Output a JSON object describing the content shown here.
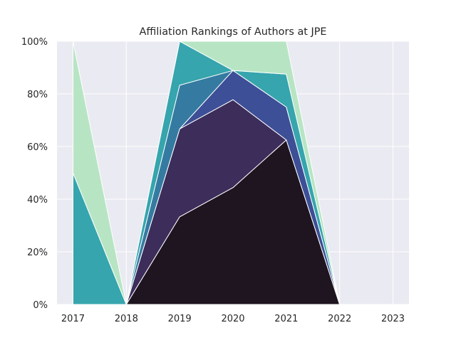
{
  "chart_data": {
    "type": "area",
    "stacked": true,
    "title": "Affiliation Rankings of Authors at JPE",
    "xlabel": "",
    "ylabel": "",
    "x": [
      "2017",
      "2018",
      "2019",
      "2020",
      "2021",
      "2022",
      "2023"
    ],
    "xlim": [
      2016.7,
      2023.3
    ],
    "ylim": [
      0,
      100
    ],
    "y_ticks": [
      0,
      20,
      40,
      60,
      80,
      100
    ],
    "y_tick_labels": [
      "0%",
      "20%",
      "40%",
      "60%",
      "80%",
      "100%"
    ],
    "grid": true,
    "legend": "none",
    "background": "#eaeaf2",
    "series": [
      {
        "values": [
          0,
          0,
          33.3,
          44.4,
          62.5,
          0,
          null
        ],
        "color": "#1f1520"
      },
      {
        "values": [
          0,
          0,
          33.4,
          33.4,
          0,
          0,
          null
        ],
        "color": "#3c2d5b"
      },
      {
        "values": [
          0,
          0,
          0,
          11.1,
          12.5,
          0,
          null
        ],
        "color": "#3d4f96"
      },
      {
        "values": [
          0,
          0,
          16.6,
          0,
          0,
          0,
          null
        ],
        "color": "#357ba1"
      },
      {
        "values": [
          50,
          0,
          16.7,
          0,
          12.5,
          0,
          null
        ],
        "color": "#36a5ad"
      },
      {
        "values": [
          50,
          0,
          0,
          11.1,
          12.5,
          0,
          null
        ],
        "color": "#b7e5c4"
      }
    ]
  }
}
